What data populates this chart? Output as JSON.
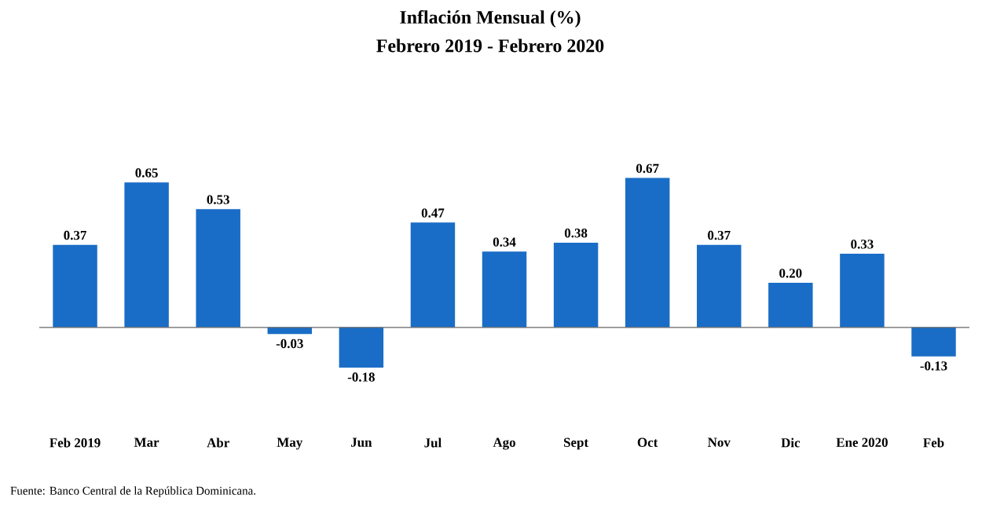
{
  "chart_data": {
    "type": "bar",
    "title": "Inflación Mensual (%)",
    "subtitle": "Febrero 2019 - Febrero 2020",
    "categories": [
      "Feb 2019",
      "Mar",
      "Abr",
      "May",
      "Jun",
      "Jul",
      "Ago",
      "Sept",
      "Oct",
      "Nov",
      "Dic",
      "Ene 2020",
      "Feb"
    ],
    "values": [
      0.37,
      0.65,
      0.53,
      -0.03,
      -0.18,
      0.47,
      0.34,
      0.38,
      0.67,
      0.37,
      0.2,
      0.33,
      -0.13
    ],
    "value_labels": [
      "0.37",
      "0.65",
      "0.53",
      "-0.03",
      "-0.18",
      "0.47",
      "0.34",
      "0.38",
      "0.67",
      "0.37",
      "0.20",
      "0.33",
      "-0.13"
    ],
    "color": "#1a6dc6",
    "annotations": [
      "Fuente: Banco Central de la República Dominicana."
    ]
  }
}
